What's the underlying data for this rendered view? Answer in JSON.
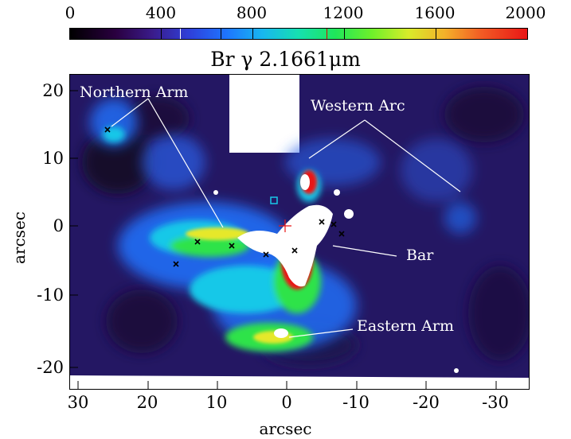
{
  "colorbar": {
    "ticks": [
      "0",
      "400",
      "800",
      "1200",
      "1600",
      "2000"
    ],
    "range": [
      0,
      2000
    ]
  },
  "title": "Br γ 2.1661μm",
  "axes": {
    "xlabel": "arcsec",
    "ylabel": "arcsec",
    "xticks": [
      "30",
      "20",
      "10",
      "0",
      "-10",
      "-20",
      "-30"
    ],
    "yticks": [
      "20",
      "10",
      "0",
      "-10",
      "-20"
    ]
  },
  "annotations": {
    "northern_arm": "Northern Arm",
    "western_arc": "Western Arc",
    "bar": "Bar",
    "eastern_arm": "Eastern Arm"
  },
  "colors": {
    "background": "#2a1a6a",
    "dark": "#150a30",
    "blue": "#1e73ff",
    "cyan": "#18c8e8",
    "green": "#2ee34a",
    "yellow": "#e6e82a",
    "red": "#e91616",
    "white": "#ffffff"
  }
}
